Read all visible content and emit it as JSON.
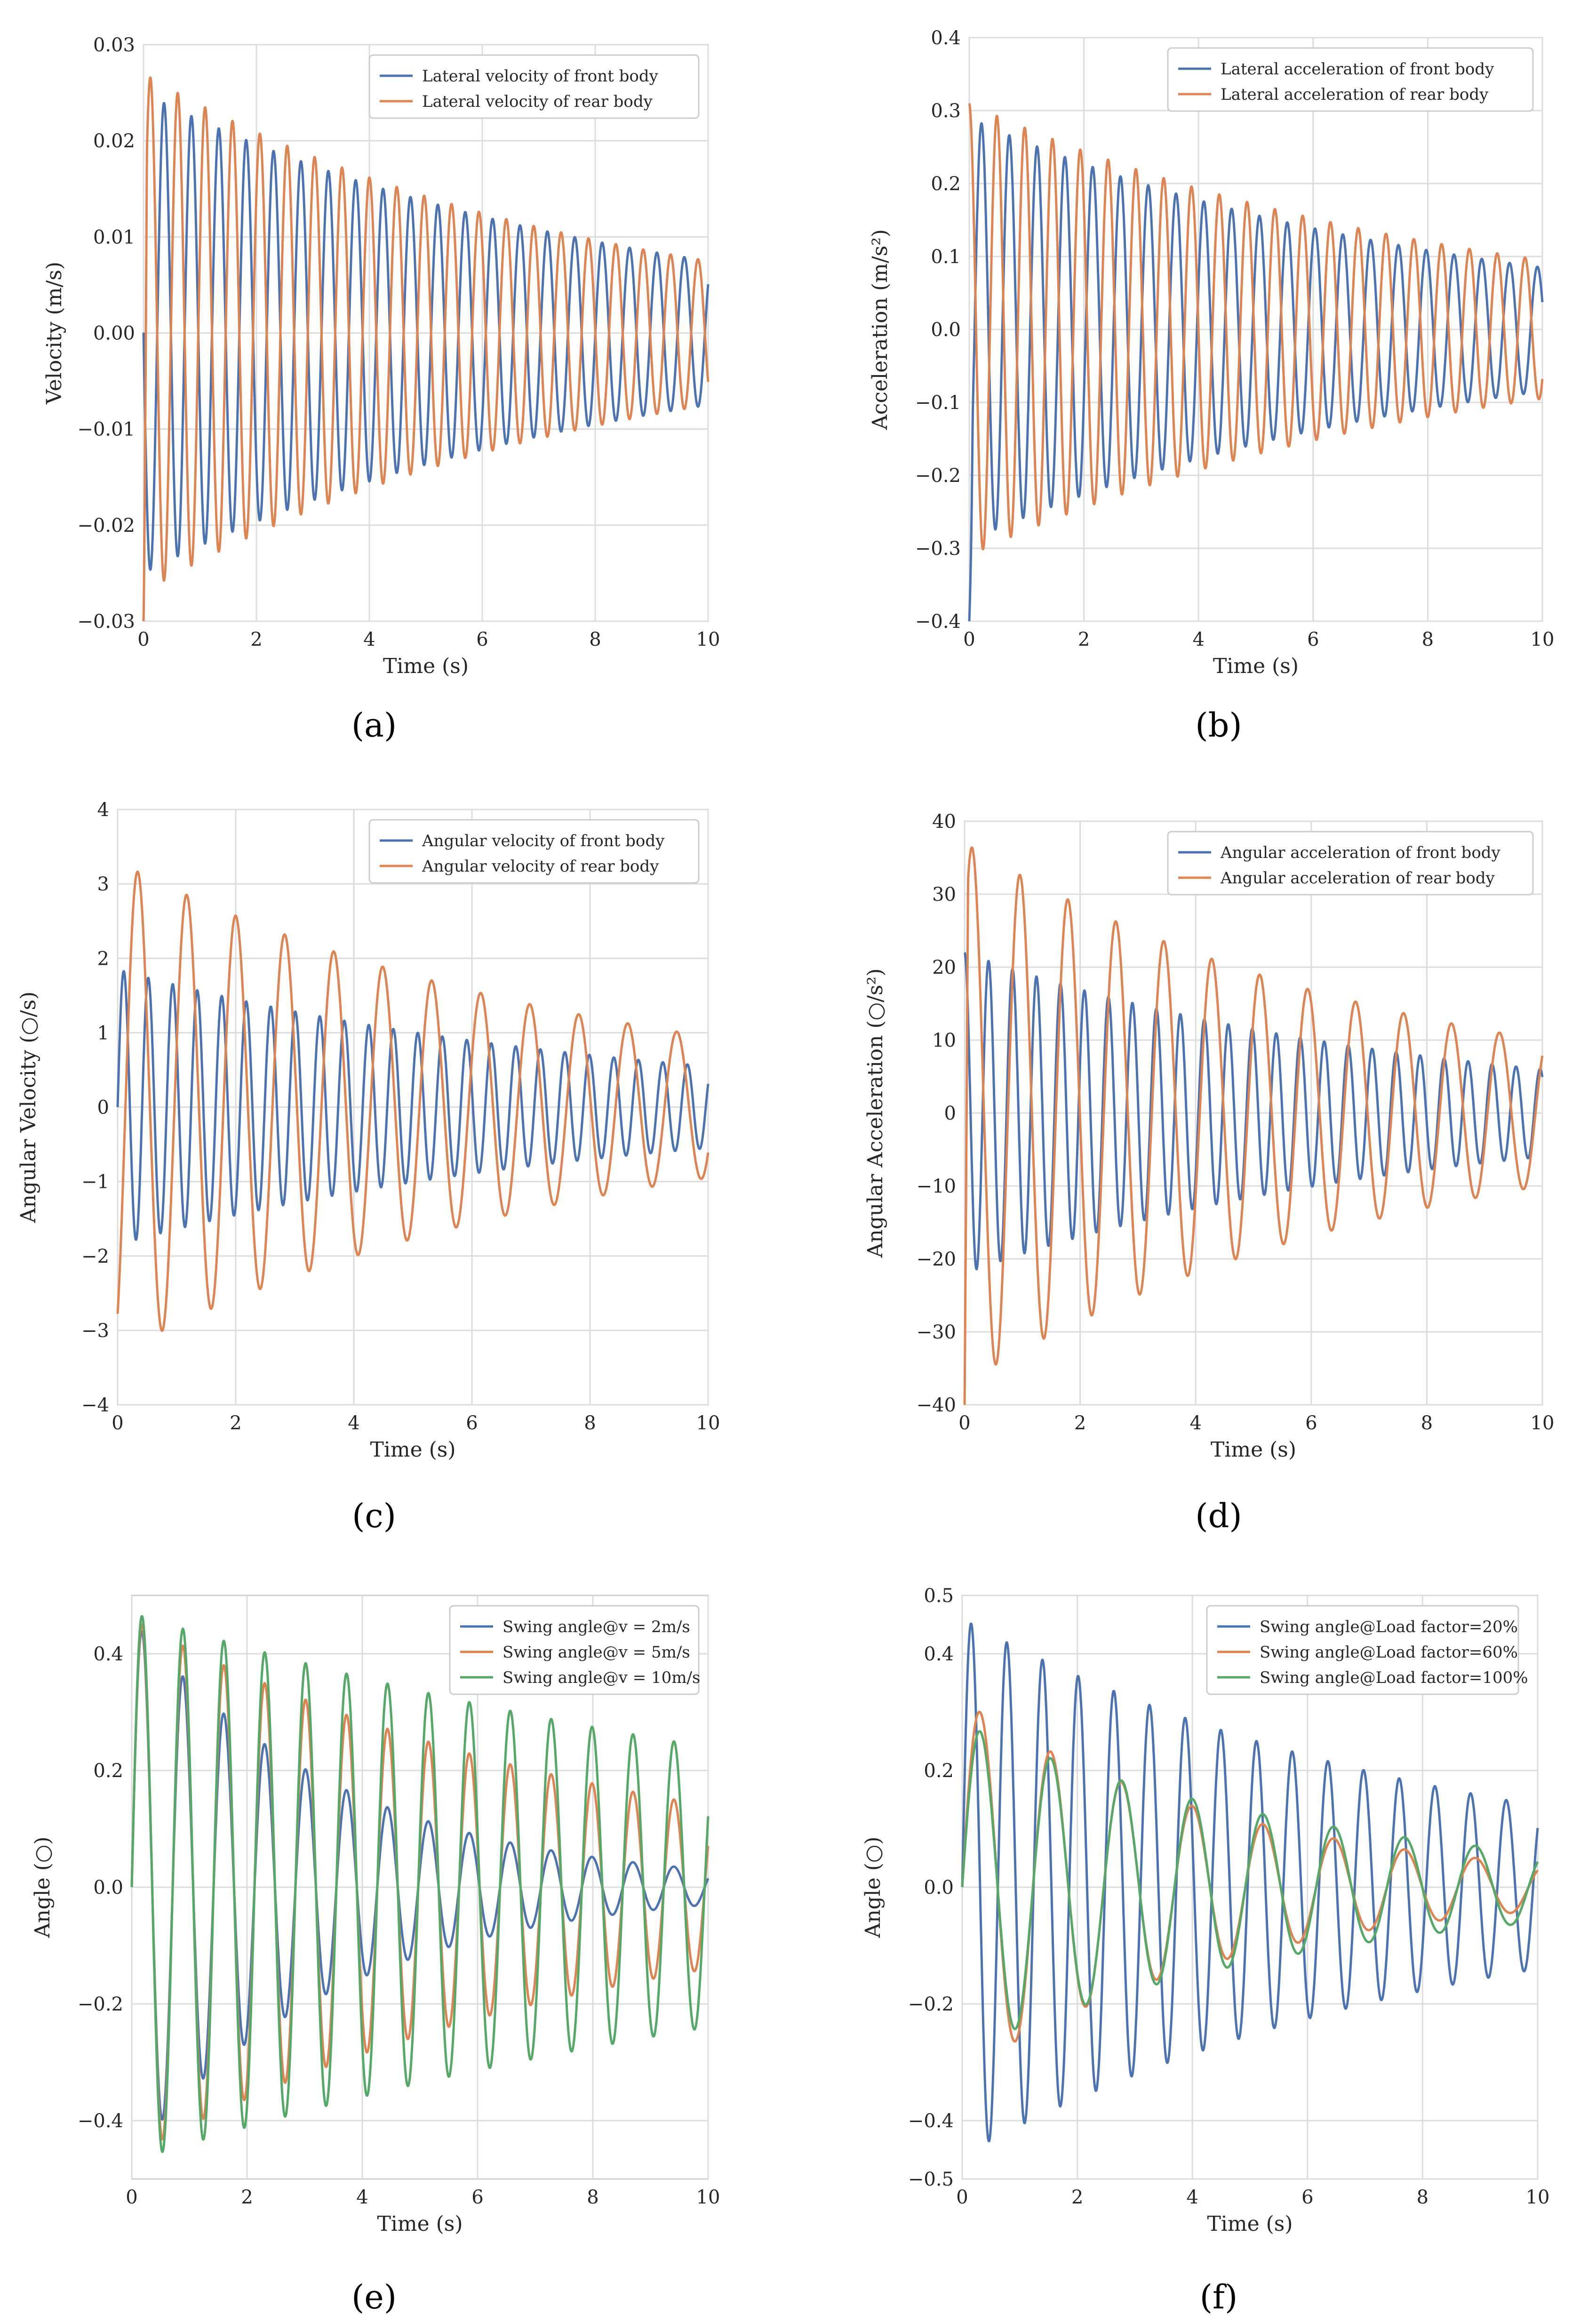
{
  "colors": {
    "blue": "#4c72b0",
    "orange": "#dd8452",
    "green": "#55a868"
  },
  "chart_data": [
    {
      "panel": "(a)",
      "type": "line",
      "xlabel": "Time (s)",
      "ylabel": "Velocity (m/s)",
      "xlim": [
        0,
        10
      ],
      "ylim": [
        -0.03,
        0.03
      ],
      "xticks": [
        "0",
        "2",
        "4",
        "6",
        "8",
        "10"
      ],
      "yticks": [
        "−0.03",
        "−0.02",
        "−0.01",
        "0.00",
        "0.01",
        "0.02",
        "0.03"
      ],
      "legend": "top-right",
      "series": [
        {
          "name": "Lateral velocity of front body",
          "color": "blue",
          "amp0": 0.025,
          "ampEnd": 0.0075,
          "period": 0.485,
          "phase": 3.14
        },
        {
          "name": "Lateral velocity of rear body",
          "color": "orange",
          "amp0": 0.027,
          "ampEnd": 0.0075,
          "period": 0.485,
          "phase": 0.0,
          "spike": -0.031
        }
      ]
    },
    {
      "panel": "(b)",
      "type": "line",
      "xlabel": "Time (s)",
      "ylabel": "Acceleration (m/s²)",
      "xlim": [
        0,
        10
      ],
      "ylim": [
        -0.4,
        0.4
      ],
      "xticks": [
        "0",
        "2",
        "4",
        "6",
        "8",
        "10"
      ],
      "yticks": [
        "−0.4",
        "−0.3",
        "−0.2",
        "−0.1",
        "0.0",
        "0.1",
        "0.2",
        "0.3",
        "0.4"
      ],
      "legend": "top-right",
      "series": [
        {
          "name": "Lateral acceleration of front body",
          "color": "blue",
          "amp0": 0.29,
          "ampEnd": 0.085,
          "period": 0.485,
          "phase": -1.2,
          "spike": -0.4
        },
        {
          "name": "Lateral acceleration of rear body",
          "color": "orange",
          "amp0": 0.31,
          "ampEnd": 0.095,
          "period": 0.485,
          "phase": 1.6
        }
      ]
    },
    {
      "panel": "(c)",
      "type": "line",
      "xlabel": "Time (s)",
      "ylabel": "Angular Velocity (○/s)",
      "xlim": [
        0,
        10
      ],
      "ylim": [
        -4,
        4
      ],
      "xticks": [
        "0",
        "2",
        "4",
        "6",
        "8",
        "10"
      ],
      "yticks": [
        "−4",
        "−3",
        "−2",
        "−1",
        "0",
        "1",
        "2",
        "3",
        "4"
      ],
      "legend": "top-right",
      "series": [
        {
          "name": "Angular velocity of front body",
          "color": "blue",
          "amp0": 1.85,
          "ampEnd": 0.55,
          "period": 0.415,
          "phase": 0.0
        },
        {
          "name": "Angular velocity of rear body",
          "color": "orange",
          "amp0": 3.3,
          "ampEnd": 0.95,
          "period": 0.83,
          "phase": -1.0
        }
      ]
    },
    {
      "panel": "(d)",
      "type": "line",
      "xlabel": "Time (s)",
      "ylabel": "Angular Acceleration (○/s²)",
      "xlim": [
        0,
        10
      ],
      "ylim": [
        -40,
        40
      ],
      "xticks": [
        "0",
        "2",
        "4",
        "6",
        "8",
        "10"
      ],
      "yticks": [
        "−40",
        "−30",
        "−20",
        "−10",
        "0",
        "10",
        "20",
        "30",
        "40"
      ],
      "legend": "top-right",
      "series": [
        {
          "name": "Angular acceleration of front body",
          "color": "blue",
          "amp0": 22,
          "ampEnd": 6,
          "period": 0.415,
          "phase": 1.57
        },
        {
          "name": "Angular acceleration of rear body",
          "color": "orange",
          "amp0": 37,
          "ampEnd": 10,
          "period": 0.83,
          "phase": 0.6,
          "spike": -40
        }
      ]
    },
    {
      "panel": "(e)",
      "type": "line",
      "xlabel": "Time (s)",
      "ylabel": "Angle (○)",
      "xlim": [
        0,
        10
      ],
      "ylim": [
        -0.5,
        0.5
      ],
      "xticks": [
        "0",
        "2",
        "4",
        "6",
        "8",
        "10"
      ],
      "yticks": [
        "−0.4",
        "−0.2",
        "0.0",
        "0.2",
        "0.4"
      ],
      "ytick_values": [
        -0.4,
        -0.2,
        0,
        0.2,
        0.4
      ],
      "legend": "top-right",
      "series": [
        {
          "name": "Swing angle@v = 2m/s",
          "color": "blue",
          "amp0": 0.46,
          "ampEnd": 0.03,
          "period": 0.71,
          "phase": 0.0
        },
        {
          "name": "Swing angle@v = 5m/s",
          "color": "orange",
          "amp0": 0.46,
          "ampEnd": 0.14,
          "period": 0.71,
          "phase": 0.0
        },
        {
          "name": "Swing angle@v = 10m/s",
          "color": "green",
          "amp0": 0.47,
          "ampEnd": 0.24,
          "period": 0.71,
          "phase": 0.0
        }
      ]
    },
    {
      "panel": "(f)",
      "type": "line",
      "xlabel": "Time (s)",
      "ylabel": "Angle (○)",
      "xlim": [
        0,
        10
      ],
      "ylim": [
        -0.5,
        0.5
      ],
      "xticks": [
        "0",
        "2",
        "4",
        "6",
        "8",
        "10"
      ],
      "yticks": [
        "−0.5",
        "−0.4",
        "−0.2",
        "0.0",
        "0.2",
        "0.4",
        "0.5"
      ],
      "ytick_values": [
        -0.5,
        -0.4,
        -0.2,
        0,
        0.2,
        0.4,
        0.5
      ],
      "legend": "top-left",
      "series": [
        {
          "name": "Swing angle@Load factor=20%",
          "color": "blue",
          "amp0": 0.46,
          "ampEnd": 0.14,
          "period": 0.62,
          "phase": 0.0
        },
        {
          "name": "Swing angle@Load factor=60%",
          "color": "orange",
          "amp0": 0.32,
          "ampEnd": 0.04,
          "period": 1.23,
          "phase": 0.0
        },
        {
          "name": "Swing angle@Load factor=100%",
          "color": "green",
          "amp0": 0.28,
          "ampEnd": 0.06,
          "period": 1.23,
          "phase": 0.0
        }
      ]
    }
  ]
}
